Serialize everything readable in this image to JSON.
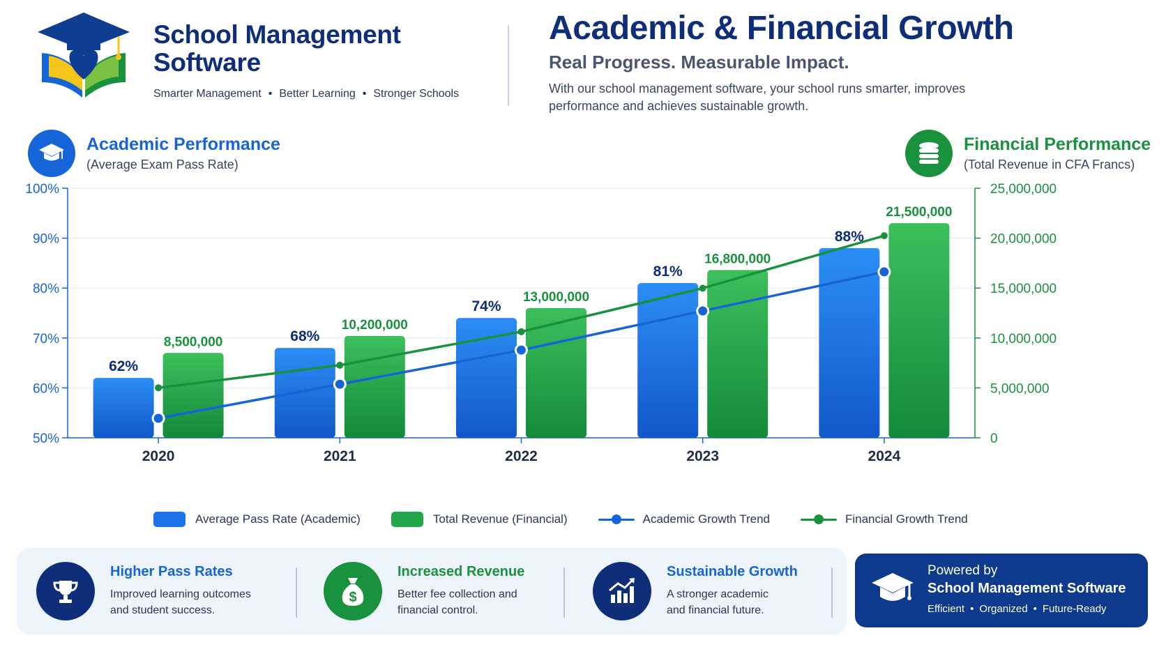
{
  "brand": {
    "title_line1": "School Management",
    "title_line2": "Software",
    "tags": [
      "Smarter Management",
      "Better Learning",
      "Stronger Schools"
    ]
  },
  "hero": {
    "title": "Academic & Financial Growth",
    "subtitle": "Real Progress. Measurable Impact.",
    "description": "With our school management software, your school runs smarter, improves performance and achieves sustainable growth."
  },
  "sections": {
    "academic": {
      "title": "Academic Performance",
      "subtitle": "(Average Exam Pass Rate)",
      "icon": "graduation-cap-icon"
    },
    "financial": {
      "title": "Financial Performance",
      "subtitle": "(Total Revenue in CFA Francs)",
      "icon": "coins-icon"
    }
  },
  "colors": {
    "academic_blue": "#1565d8",
    "financial_green": "#18923c",
    "navy": "#0f2e7a"
  },
  "chart_data": {
    "type": "bar",
    "categories": [
      "2020",
      "2021",
      "2022",
      "2023",
      "2024"
    ],
    "series": [
      {
        "name": "Average Pass Rate (Academic)",
        "axis": "left",
        "values": [
          62,
          68,
          74,
          81,
          88
        ],
        "labels": [
          "62%",
          "68%",
          "74%",
          "81%",
          "88%"
        ]
      },
      {
        "name": "Total Revenue (Financial)",
        "axis": "right",
        "values": [
          8500000,
          10200000,
          13000000,
          16800000,
          21500000
        ],
        "labels": [
          "8,500,000",
          "10,200,000",
          "13,000,000",
          "16,800,000",
          "21,500,000"
        ]
      }
    ],
    "trend_lines": [
      {
        "name": "Academic Growth Trend",
        "follows": "Average Pass Rate (Academic)"
      },
      {
        "name": "Financial Growth Trend",
        "follows": "Total Revenue (Financial)"
      }
    ],
    "y_left": {
      "ylim": [
        50,
        100
      ],
      "ticks": [
        "50%",
        "60%",
        "70%",
        "80%",
        "90%",
        "100%"
      ]
    },
    "y_right": {
      "ylim": [
        0,
        25000000
      ],
      "ticks": [
        "0",
        "5,000,000",
        "10,000,000",
        "15,000,000",
        "20,000,000",
        "25,000,000"
      ]
    },
    "grid": true,
    "legend_position": "bottom"
  },
  "legend": [
    {
      "label": "Average Pass Rate (Academic)",
      "kind": "box",
      "color": "#1a73e8"
    },
    {
      "label": "Total Revenue (Financial)",
      "kind": "box",
      "color": "#22a84a"
    },
    {
      "label": "Academic Growth Trend",
      "kind": "line",
      "color": "#1565d8"
    },
    {
      "label": "Financial Growth Trend",
      "kind": "line",
      "color": "#18923c"
    }
  ],
  "features": [
    {
      "title": "Higher Pass Rates",
      "desc_line1": "Improved learning outcomes",
      "desc_line2": "and student success.",
      "icon": "trophy-icon",
      "color": "#0f2e7a"
    },
    {
      "title": "Increased Revenue",
      "desc_line1": "Better fee collection and",
      "desc_line2": "financial control.",
      "icon": "money-bag-icon",
      "color": "#18923c"
    },
    {
      "title": "Sustainable Growth",
      "desc_line1": "A stronger academic",
      "desc_line2": "and financial future.",
      "icon": "growth-chart-icon",
      "color": "#0f2e7a"
    }
  ],
  "powered": {
    "label": "Powered by",
    "name": "School Management Software",
    "tags": [
      "Efficient",
      "Organized",
      "Future-Ready"
    ],
    "icon": "graduation-cap-icon"
  }
}
